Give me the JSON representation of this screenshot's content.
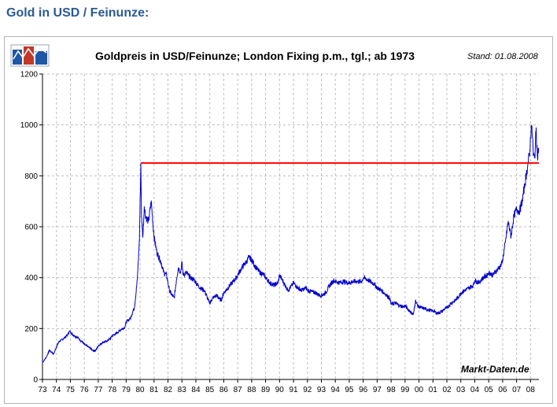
{
  "page": {
    "heading": "Gold in USD / Feinunze:"
  },
  "chart_data": {
    "type": "line",
    "title": "Goldpreis in USD/Feinunze; London Fixing p.m., tgl.; ab 1973",
    "stand": "Stand: 01.08.2008",
    "source": "Markt-Daten.de",
    "xlabel": "",
    "ylabel": "",
    "ylim": [
      0,
      1200
    ],
    "xlim": [
      1973,
      2008.6
    ],
    "yticks": [
      "0",
      "200",
      "400",
      "600",
      "800",
      "1000",
      "1200"
    ],
    "xticks": [
      "73",
      "74",
      "75",
      "76",
      "77",
      "78",
      "79",
      "80",
      "81",
      "82",
      "83",
      "84",
      "85",
      "86",
      "87",
      "88",
      "89",
      "90",
      "91",
      "92",
      "93",
      "94",
      "95",
      "96",
      "97",
      "98",
      "99",
      "00",
      "01",
      "02",
      "03",
      "04",
      "05",
      "06",
      "07",
      "08"
    ],
    "grid": true,
    "series": [
      {
        "color": "#0000cc",
        "x": [
          1973.0,
          1973.3,
          1973.5,
          1973.8,
          1974.0,
          1974.2,
          1974.5,
          1974.8,
          1974.95,
          1975.2,
          1975.5,
          1975.8,
          1976.0,
          1976.3,
          1976.6,
          1976.8,
          1977.0,
          1977.3,
          1977.6,
          1977.9,
          1978.0,
          1978.3,
          1978.6,
          1978.9,
          1979.0,
          1979.3,
          1979.6,
          1979.8,
          1979.95,
          1980.05,
          1980.1,
          1980.2,
          1980.3,
          1980.4,
          1980.6,
          1980.8,
          1981.0,
          1981.2,
          1981.5,
          1981.7,
          1981.9,
          1982.1,
          1982.3,
          1982.45,
          1982.6,
          1982.75,
          1982.9,
          1983.0,
          1983.1,
          1983.3,
          1983.6,
          1983.9,
          1984.0,
          1984.3,
          1984.6,
          1984.9,
          1985.0,
          1985.2,
          1985.5,
          1985.8,
          1986.0,
          1986.3,
          1986.6,
          1986.9,
          1987.0,
          1987.3,
          1987.6,
          1987.8,
          1988.0,
          1988.3,
          1988.6,
          1988.9,
          1989.0,
          1989.3,
          1989.6,
          1989.9,
          1990.0,
          1990.3,
          1990.6,
          1990.9,
          1991.0,
          1991.3,
          1991.6,
          1991.9,
          1992.0,
          1992.3,
          1992.6,
          1992.9,
          1993.0,
          1993.3,
          1993.6,
          1993.9,
          1994.0,
          1994.3,
          1994.6,
          1994.9,
          1995.0,
          1995.3,
          1995.6,
          1995.9,
          1996.0,
          1996.2,
          1996.5,
          1996.8,
          1997.0,
          1997.3,
          1997.6,
          1997.9,
          1998.0,
          1998.3,
          1998.6,
          1998.9,
          1999.0,
          1999.3,
          1999.6,
          1999.75,
          1999.9,
          2000.0,
          2000.3,
          2000.6,
          2000.9,
          2001.0,
          2001.3,
          2001.6,
          2001.9,
          2002.0,
          2002.3,
          2002.6,
          2002.9,
          2003.0,
          2003.3,
          2003.6,
          2003.9,
          2004.0,
          2004.3,
          2004.6,
          2004.9,
          2005.0,
          2005.3,
          2005.6,
          2005.9,
          2006.0,
          2006.2,
          2006.4,
          2006.6,
          2006.8,
          2007.0,
          2007.2,
          2007.4,
          2007.6,
          2007.8,
          2007.95,
          2008.05,
          2008.15,
          2008.2,
          2008.3,
          2008.4,
          2008.5,
          2008.58
        ],
        "values": [
          66,
          90,
          115,
          100,
          128,
          150,
          160,
          175,
          190,
          175,
          165,
          150,
          138,
          128,
          115,
          112,
          132,
          145,
          150,
          163,
          172,
          180,
          195,
          205,
          225,
          240,
          285,
          390,
          550,
          850,
          640,
          560,
          680,
          640,
          620,
          700,
          560,
          500,
          460,
          420,
          410,
          350,
          330,
          320,
          390,
          440,
          420,
          460,
          410,
          420,
          400,
          390,
          380,
          360,
          350,
          310,
          300,
          320,
          330,
          310,
          340,
          360,
          380,
          400,
          410,
          440,
          460,
          480,
          470,
          440,
          420,
          410,
          400,
          380,
          370,
          380,
          410,
          380,
          350,
          370,
          380,
          360,
          350,
          360,
          350,
          345,
          340,
          330,
          330,
          340,
          370,
          390,
          385,
          380,
          385,
          380,
          380,
          385,
          385,
          385,
          400,
          395,
          385,
          375,
          360,
          350,
          335,
          320,
          295,
          300,
          290,
          285,
          290,
          270,
          255,
          310,
          290,
          285,
          280,
          275,
          270,
          270,
          260,
          265,
          280,
          280,
          300,
          310,
          330,
          340,
          350,
          360,
          370,
          390,
          380,
          400,
          410,
          420,
          410,
          430,
          450,
          470,
          540,
          620,
          560,
          640,
          670,
          660,
          700,
          770,
          840,
          900,
          1000,
          950,
          880,
          870,
          990,
          870,
          910
        ]
      }
    ],
    "reference_lines": [
      {
        "label": "",
        "y": 850,
        "from": 1980.05,
        "to": 2008.6,
        "color": "#ff0000"
      }
    ]
  }
}
